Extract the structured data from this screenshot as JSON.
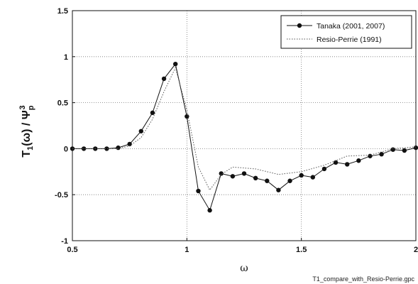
{
  "chart_data": {
    "type": "line",
    "xlabel": "ω",
    "ylabel": {
      "base": "T",
      "sub1": "1",
      "mid": "(ω) / Ψ",
      "sub2": "p",
      "sup": "3"
    },
    "xlim": [
      0.5,
      2
    ],
    "ylim": [
      -1,
      1.5
    ],
    "xticks": [
      0.5,
      1,
      1.5,
      2
    ],
    "xtick_labels": [
      "0.5",
      "1",
      "1.5",
      "2"
    ],
    "yticks": [
      -1,
      -0.5,
      0,
      0.5,
      1,
      1.5
    ],
    "ytick_labels": [
      "-1",
      "-0.5",
      "0",
      "0.5",
      "1",
      "1.5"
    ],
    "grid": true,
    "legend_position": "top-right",
    "series": [
      {
        "name": "Tanaka (2001, 2007)",
        "style": "line-with-dot-markers",
        "color": "#111111",
        "x": [
          0.5,
          0.55,
          0.6,
          0.65,
          0.7,
          0.75,
          0.8,
          0.85,
          0.9,
          0.95,
          1.0,
          1.05,
          1.1,
          1.15,
          1.2,
          1.25,
          1.3,
          1.35,
          1.4,
          1.45,
          1.5,
          1.55,
          1.6,
          1.65,
          1.7,
          1.75,
          1.8,
          1.85,
          1.9,
          1.95,
          2.0
        ],
        "y": [
          0.0,
          0.0,
          0.0,
          0.0,
          0.01,
          0.05,
          0.19,
          0.39,
          0.76,
          0.92,
          0.35,
          -0.46,
          -0.67,
          -0.27,
          -0.3,
          -0.27,
          -0.32,
          -0.35,
          -0.45,
          -0.35,
          -0.29,
          -0.31,
          -0.22,
          -0.15,
          -0.17,
          -0.13,
          -0.08,
          -0.06,
          -0.01,
          -0.02,
          0.01
        ]
      },
      {
        "name": "Resio-Perrie (1991)",
        "style": "dotted-line",
        "color": "#555555",
        "x": [
          0.5,
          0.6,
          0.7,
          0.75,
          0.8,
          0.85,
          0.9,
          0.95,
          1.0,
          1.05,
          1.1,
          1.15,
          1.2,
          1.3,
          1.4,
          1.5,
          1.6,
          1.7,
          1.8,
          1.9,
          2.0
        ],
        "y": [
          0.0,
          0.0,
          0.0,
          0.03,
          0.12,
          0.32,
          0.62,
          0.88,
          0.42,
          -0.2,
          -0.45,
          -0.28,
          -0.2,
          -0.22,
          -0.28,
          -0.25,
          -0.18,
          -0.08,
          -0.07,
          0.0,
          0.02
        ]
      }
    ]
  },
  "footer_label": "T1_compare_with_Resio-Perrie.gpc"
}
